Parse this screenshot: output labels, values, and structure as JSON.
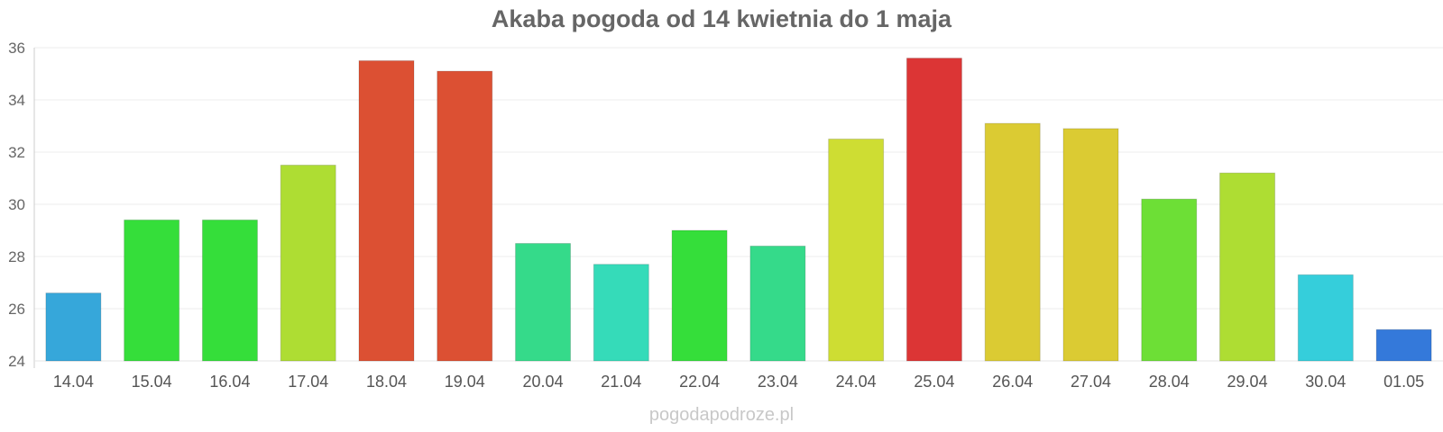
{
  "chart_data": {
    "type": "bar",
    "title": "Akaba pogoda od 14 kwietnia do 1 maja",
    "categories": [
      "14.04",
      "15.04",
      "16.04",
      "17.04",
      "18.04",
      "19.04",
      "20.04",
      "21.04",
      "22.04",
      "23.04",
      "24.04",
      "25.04",
      "26.04",
      "27.04",
      "28.04",
      "29.04",
      "30.04",
      "01.05"
    ],
    "values": [
      26.6,
      29.4,
      29.4,
      31.5,
      35.5,
      35.1,
      28.5,
      27.7,
      29.0,
      28.4,
      32.5,
      35.6,
      33.1,
      32.9,
      30.2,
      31.2,
      27.3,
      25.2
    ],
    "colors": [
      "#36a7da",
      "#35de3a",
      "#35de3a",
      "#aedd33",
      "#dc5033",
      "#dc5033",
      "#35da8a",
      "#35dbb9",
      "#35de3a",
      "#35da8a",
      "#cedd33",
      "#dc3535",
      "#dbcb33",
      "#dbcb33",
      "#6ddf36",
      "#aedd33",
      "#35cedb",
      "#3479da"
    ],
    "ylim": [
      24,
      36
    ],
    "yticks": [
      24,
      26,
      28,
      30,
      32,
      34,
      36
    ],
    "grid": true,
    "legend": "none"
  },
  "footer": {
    "watermark": "pogodapodroze.pl"
  }
}
